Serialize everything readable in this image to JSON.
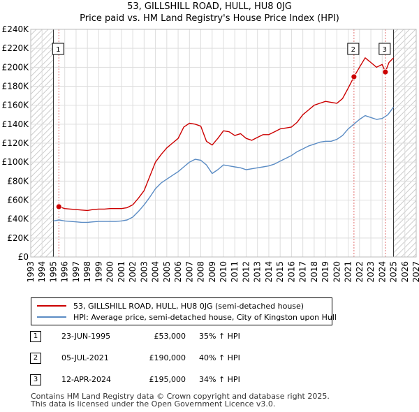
{
  "title_line1": "53, GILLSHILL ROAD, HULL, HU8 0JG",
  "title_line2": "Price paid vs. HM Land Registry's House Price Index (HPI)",
  "colors": {
    "property": "#cc0000",
    "hpi": "#5b8cc4",
    "marker": "#cc0000"
  },
  "chart_data": {
    "type": "line",
    "title": "53, GILLSHILL ROAD, HULL, HU8 0JG",
    "subtitle": "Price paid vs. HM Land Registry's House Price Index (HPI)",
    "xlabel": "",
    "ylabel": "",
    "xlim": [
      1993,
      2027
    ],
    "ylim": [
      0,
      240000
    ],
    "grid": true,
    "x_ticks": [
      1993,
      1994,
      1995,
      1996,
      1997,
      1998,
      1999,
      2000,
      2001,
      2002,
      2003,
      2004,
      2005,
      2006,
      2007,
      2008,
      2009,
      2010,
      2011,
      2012,
      2013,
      2014,
      2015,
      2016,
      2017,
      2018,
      2019,
      2020,
      2021,
      2022,
      2023,
      2024,
      2025,
      2026,
      2027
    ],
    "y_ticks": [
      0,
      20000,
      40000,
      60000,
      80000,
      100000,
      120000,
      140000,
      160000,
      180000,
      200000,
      220000,
      240000
    ],
    "y_tick_labels": [
      "£0",
      "£20K",
      "£40K",
      "£60K",
      "£80K",
      "£100K",
      "£120K",
      "£140K",
      "£160K",
      "£180K",
      "£200K",
      "£220K",
      "£240K"
    ],
    "hatched_regions": [
      [
        1993,
        1995.0
      ],
      [
        2025.0,
        2027
      ]
    ],
    "series": [
      {
        "name": "53, GILLSHILL ROAD, HULL, HU8 0JG (semi-detached house)",
        "x": [
          1995.48,
          1996.0,
          1996.5,
          1997.0,
          1997.5,
          1998.0,
          1998.5,
          1999.0,
          1999.5,
          2000.0,
          2000.5,
          2001.0,
          2001.5,
          2002.0,
          2002.5,
          2003.0,
          2003.5,
          2004.0,
          2004.5,
          2005.0,
          2005.5,
          2006.0,
          2006.5,
          2007.0,
          2007.5,
          2008.0,
          2008.5,
          2009.0,
          2009.5,
          2010.0,
          2010.5,
          2011.0,
          2011.5,
          2012.0,
          2012.5,
          2013.0,
          2013.5,
          2014.0,
          2014.5,
          2015.0,
          2015.5,
          2016.0,
          2016.5,
          2017.0,
          2017.5,
          2018.0,
          2018.5,
          2019.0,
          2019.5,
          2020.0,
          2020.5,
          2021.0,
          2021.51,
          2022.0,
          2022.5,
          2023.0,
          2023.5,
          2024.0,
          2024.28,
          2024.6,
          2025.0
        ],
        "values": [
          53000,
          51000,
          50500,
          50000,
          49500,
          49000,
          50000,
          50500,
          50500,
          51000,
          51000,
          51000,
          52000,
          55000,
          62000,
          70000,
          85000,
          100000,
          108000,
          115000,
          120000,
          125000,
          137000,
          141000,
          140000,
          138000,
          122000,
          118000,
          125000,
          133000,
          132000,
          128000,
          130000,
          125000,
          123000,
          126000,
          129000,
          129000,
          132000,
          135000,
          136000,
          137000,
          142000,
          150000,
          155000,
          160000,
          162000,
          164000,
          163000,
          162000,
          167000,
          178000,
          190000,
          200000,
          210000,
          205000,
          200000,
          203000,
          195000,
          205000,
          210000
        ]
      },
      {
        "name": "HPI: Average price, semi-detached house, City of Kingston upon Hull",
        "x": [
          1995.0,
          1995.5,
          1996.0,
          1996.5,
          1997.0,
          1997.5,
          1998.0,
          1998.5,
          1999.0,
          1999.5,
          2000.0,
          2000.5,
          2001.0,
          2001.5,
          2002.0,
          2002.5,
          2003.0,
          2003.5,
          2004.0,
          2004.5,
          2005.0,
          2005.5,
          2006.0,
          2006.5,
          2007.0,
          2007.5,
          2008.0,
          2008.5,
          2009.0,
          2009.5,
          2010.0,
          2010.5,
          2011.0,
          2011.5,
          2012.0,
          2012.5,
          2013.0,
          2013.5,
          2014.0,
          2014.5,
          2015.0,
          2015.5,
          2016.0,
          2016.5,
          2017.0,
          2017.5,
          2018.0,
          2018.5,
          2019.0,
          2019.5,
          2020.0,
          2020.5,
          2021.0,
          2021.5,
          2022.0,
          2022.5,
          2023.0,
          2023.5,
          2024.0,
          2024.5,
          2025.0
        ],
        "values": [
          38000,
          39000,
          38000,
          37500,
          37000,
          36500,
          36500,
          37000,
          37500,
          37500,
          37500,
          37500,
          38000,
          39000,
          42000,
          48000,
          55000,
          63000,
          72000,
          78000,
          82000,
          86000,
          90000,
          95000,
          100000,
          103000,
          102000,
          97000,
          88000,
          92000,
          97000,
          96000,
          95000,
          94000,
          92000,
          93000,
          94000,
          95000,
          96000,
          98000,
          101000,
          104000,
          107000,
          111000,
          114000,
          117000,
          119000,
          121000,
          122000,
          122000,
          124000,
          128000,
          135000,
          140000,
          145000,
          149000,
          147000,
          145000,
          146000,
          150000,
          158000
        ]
      }
    ],
    "sales": [
      {
        "label": "1",
        "x": 1995.48,
        "value": 53000
      },
      {
        "label": "2",
        "x": 2021.51,
        "value": 190000
      },
      {
        "label": "3",
        "x": 2024.28,
        "value": 195000
      }
    ]
  },
  "legend": {
    "property_label": "53, GILLSHILL ROAD, HULL, HU8 0JG (semi-detached house)",
    "hpi_label": "HPI: Average price, semi-detached house, City of Kingston upon Hull"
  },
  "sales_table": [
    {
      "num": "1",
      "date": "23-JUN-1995",
      "price": "£53,000",
      "hpi": "35% ↑ HPI"
    },
    {
      "num": "2",
      "date": "05-JUL-2021",
      "price": "£190,000",
      "hpi": "40% ↑ HPI"
    },
    {
      "num": "3",
      "date": "12-APR-2024",
      "price": "£195,000",
      "hpi": "34% ↑ HPI"
    }
  ],
  "footer": {
    "line1": "Contains HM Land Registry data © Crown copyright and database right 2025.",
    "line2": "This data is licensed under the Open Government Licence v3.0."
  }
}
